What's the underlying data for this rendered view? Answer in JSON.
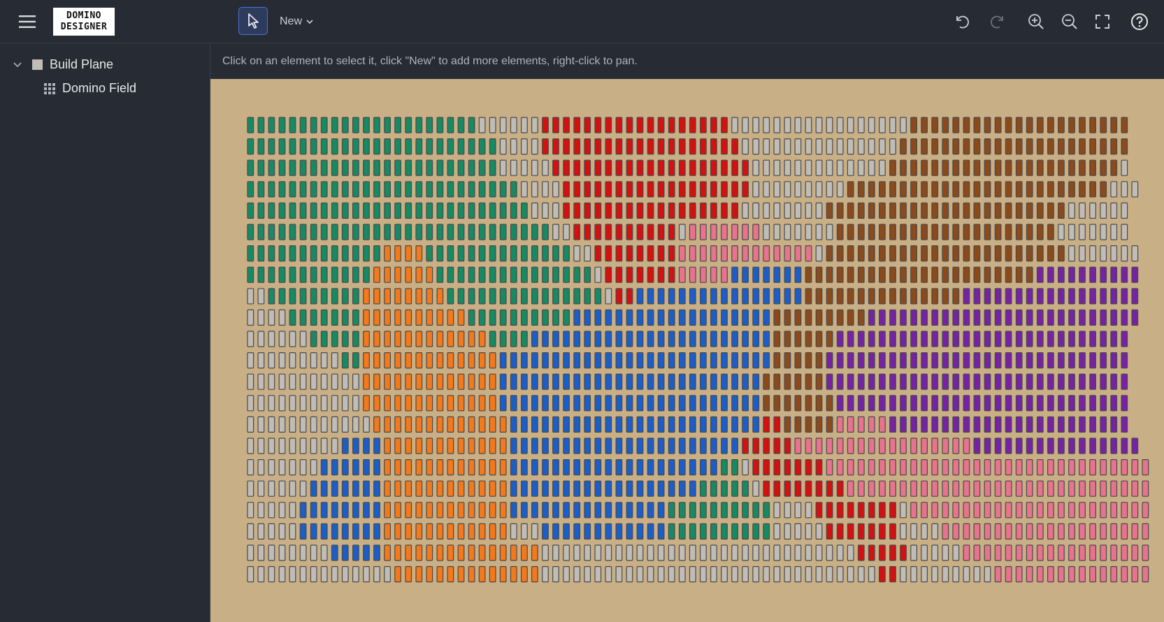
{
  "app": {
    "logo_line1": "DOMINO",
    "logo_line2": "DESIGNER"
  },
  "toolbar": {
    "menu_icon": "hamburger-menu-icon",
    "select_tool_icon": "cursor-arrow-icon",
    "new_label": "New",
    "actions": [
      "undo-icon",
      "redo-icon",
      "zoom-in-icon",
      "zoom-out-icon",
      "fullscreen-icon",
      "help-icon"
    ]
  },
  "sidebar": {
    "items": [
      {
        "label": "Build Plane",
        "icon": "square-icon",
        "expanded": true
      },
      {
        "label": "Domino Field",
        "icon": "grid-icon",
        "expanded": false
      }
    ]
  },
  "hint": "Click on an element to select it, click \"New\" to add more elements, right-click to pan.",
  "colors": {
    "background": "#272b33",
    "canvas": "#c8af86",
    "palette": {
      "W": "#c0bcb6",
      "G": "#178a63",
      "R": "#d41010",
      "B": "#8b4a1c",
      "O": "#f4791a",
      "P": "#e8738e",
      "U": "#1b5ec9",
      "V": "#7622a4"
    }
  },
  "domino_field": {
    "columns": 84,
    "rows": [
      "GGGGGGGGGGGGGGGGGGGGGGWWWWWWRRRRRRRRRRRRRRRRRRWWWWWWWWWWWWWWWWWBBBBBBBBBBBBBBBBBBBBB",
      "GGGGGGGGGGGGGGGGGGGGGGGGWWWWRRRRRRRRRRRRRRRRRRRWWWWWWWWWWWWWWWBBBBBBBBBBBBBBBBBBBBBB",
      "GGGGGGGGGGGGGGGGGGGGGGGGWWWWWRRRRRRRRRRRRRRRRRRRWWWWWWWWWWWWWBBBBBBBBBBBBBBBBBBBBBBW",
      "GGGGGGGGGGGGGGGGGGGGGGGGGGWWWWRRRRRRRRRRRRRRRRRRWWWWWWWWWBBBBBBBBBBBBBBBBBBBBBBBBBWWW",
      "GGGGGGGGGGGGGGGGGGGGGGGGGGGWWWRRRRRRRRRRRRRRRRRWWWWWWWWBBBBBBBBBBBBBBBBBBBBBBBWWWWWW",
      "GGGGGGGGGGGGGGGGGGGGGGGGGGGGGWWRRRRRRRRRRWPPPPPPPWWWWWWWBBBBBBBBBBBBBBBBBBBBBWWWWWWW",
      "GGGGGGGGGGGGGOOOOGGGGGGGGGGGGGGWWRRRRRRRRPPPPPPPPPPPPPWBBBBBBBBBBBBBBBBBBBBBBBWWWWWWW",
      "GGGGGGGGGGGGOOOOOOGGGGGGGGGGGGGGGWRRRRRRRPPPPPUUUUUUUBBBBBBBBBBBBBBBBBBBBBBVVVVVVVVVV",
      "WWGGGGGGGGGOOOOOOOOGGGGGGGGGGGGGGGWRRUUUUUUUUUUUUUUUUBBBBBBBBBBBBBBBVVVVVVVVVVVVVVVVV",
      "WWWWGGGGGGGOOOOOOOOOOGGGGGGGGGGUUUUUUUUUUUUUUUUUUUBBBBBBBBBVVVVVVVVVVVVVVVVVVVVVVVVVV",
      "WWWWWWGGGGGOOOOOOOOOOOOGGGGUUUUUUUUUUUUUUUUUUUUUUUBBBBBBVVVVVVVVVVVVVVVVVVVVVVVVVVVV",
      "WWWWWWWWWGGOOOOOOOOOOOOOUUUUUUUUUUUUUUUUUUUUUUUUUUBBBBBVVVVVVVVVVVVVVVVVVVVVVVVVVVVV",
      "WWWWWWWWWWWOOOOOOOOOOOOOUUUUUUUUUUUUUUUUUUUUUUUUUBBBBBBVVVVVVVVVVVVVVVVVVVVVVVVVVVVV",
      "WWWWWWWWWWWOOOOOOOOOOOOOUUUUUUUUUUUUUUUUUUUUUUUUUBBBBBBBVVVVVVVVVVVVVVVVVVVVVVVVVVVV",
      "WWWWWWWWWWWWOOOOOOOOOOOOOUUUUUUUUUUUUUUUUUUUUUUUURRBBBBBPPPPPVVVVVVVVVVVVVVVVVVVVVVV",
      "WWWWWWWWWUUUUOOOOOOOOOOOOUUUUUUUUUUUUUUUUUUUUUURRRRRPPPPPPPPPPPPPPPPPVVVVVVVVVVVVVVVV",
      "WWWWWWWUUUUUUOOOOOOOOOOOOUUUUUUUUUUUUUUUUUUUUGGWRRRRRRRPPPPPPPPPPPPPPPPPPPPPPPPPPPPPPP",
      "WWWWWWUUUUUUUOOOOOOOOOOOOUUUUUUUUUUUUUUUUUUGGGGGWRRRRRRRRPPPPPPPPPPPPPPPPPPPPPPPPPPPPP",
      "WWWWWUUUUUUUUOOOOOOOOOOOOUUUUUUUUUUUUUUUGGGGGGGGGGWWWWRRRRRRRRWPPPPPPPPPPPPPPPPPPPPPPP",
      "WWWWWUUUUUUUUOOOOOOOOOOOOWWWUUUUUUUUUUUUGGGGGGGGGGWWWWWRRRRRRRWWWWPPPPPPPPPPPPPPPPPPPP",
      "WWWWWWWWUUUUUOOOOOOOOOOOOOOOWWWWWWWWWWWWWWWWWWWWWWWWWWWWWWRRRRRWWWWWPPPPPPPPPPPPPPPPPP",
      "WWWWWWWWWWWWWWOOOOOOOOOOOOOOWWWWWWWWWWWWWWWWWWWWWWWWWWWWWWWWRRWWWWWWWWWPPPPPPPPPPPPPPP"
    ]
  }
}
